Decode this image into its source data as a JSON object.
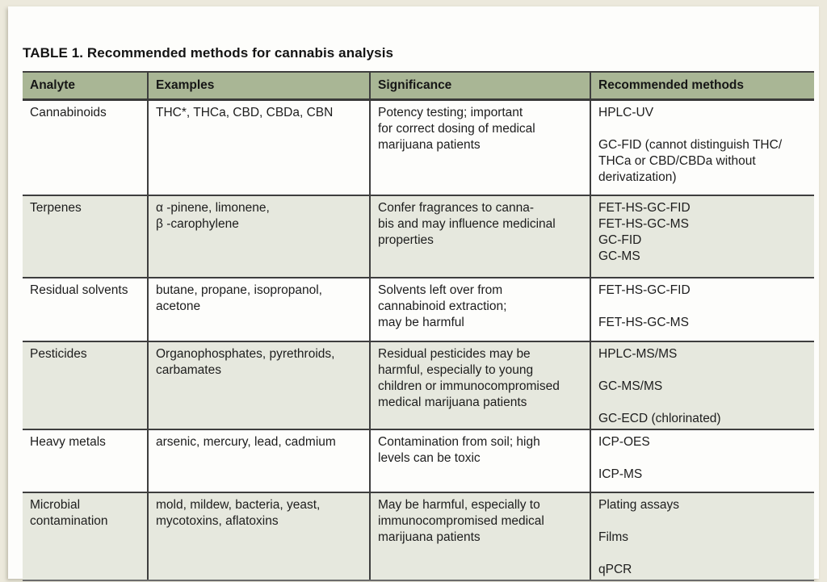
{
  "page": {
    "title": "TABLE 1. Recommended methods for cannabis analysis"
  },
  "colors": {
    "outer_background": "#ECE9DC",
    "page_background": "#FDFDFB",
    "header_background": "#A9B695",
    "row_tint": "#E6E8DE",
    "border": "#3E3E3E",
    "text": "#1D1D1D"
  },
  "table": {
    "headers": [
      "Analyte",
      "Examples",
      "Significance",
      "Recommended methods"
    ],
    "rows": [
      {
        "cells": [
          "Cannabinoids",
          "THC*, THCa, CBD, CBDa, CBN",
          "Potency testing; important\nfor correct dosing of medical\nmarijuana patients",
          "HPLC-UV\n\nGC-FID (cannot distinguish THC/\nTHCa or CBD/CBDa without\nderivatization)"
        ]
      },
      {
        "cells": [
          "Terpenes",
          "α -pinene, limonene,\nβ -carophylene",
          "Confer fragrances to canna-\nbis and may influence medicinal\nproperties",
          "FET-HS-GC-FID\nFET-HS-GC-MS\nGC-FID\nGC-MS"
        ]
      },
      {
        "cells": [
          "Residual solvents",
          "butane, propane, isopropanol,\nacetone",
          "Solvents left over from\ncannabinoid extraction;\nmay be harmful",
          "FET-HS-GC-FID\n\nFET-HS-GC-MS"
        ]
      },
      {
        "cells": [
          "Pesticides",
          "Organophosphates, pyrethroids,\ncarbamates",
          "Residual pesticides may be\nharmful, especially to young\nchildren or immunocompromised\nmedical marijuana patients",
          "HPLC-MS/MS\n\nGC-MS/MS\n\nGC-ECD (chlorinated)"
        ]
      },
      {
        "cells": [
          "Heavy metals",
          "arsenic, mercury, lead, cadmium",
          "Contamination from soil; high\nlevels can be toxic",
          "ICP-OES\n\nICP-MS"
        ]
      },
      {
        "cells": [
          "Microbial\ncontamination",
          "mold, mildew, bacteria, yeast,\nmycotoxins, aflatoxins",
          "May be harmful, especially to\nimmunocompromised medical\nmarijuana patients",
          "Plating assays\n\nFilms\n\nqPCR"
        ]
      }
    ]
  }
}
